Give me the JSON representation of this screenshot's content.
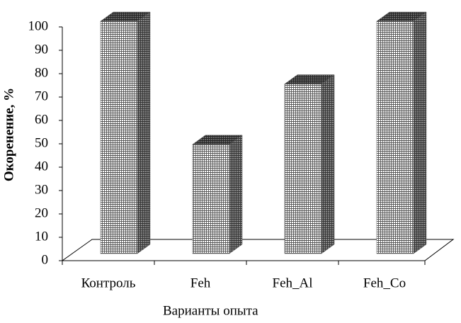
{
  "chart_data": {
    "type": "bar",
    "x_label": "Варианты опыта",
    "y_label": "Окоренение, %",
    "categories": [
      "Контроль",
      "Feh",
      "Feh_Al",
      "Feh_Co"
    ],
    "values": [
      100,
      47,
      73,
      100
    ],
    "color": "#555555",
    "ylim": [
      0,
      100
    ],
    "yticks": [
      0,
      10,
      20,
      30,
      40,
      50,
      60,
      70,
      80,
      90,
      100
    ]
  }
}
